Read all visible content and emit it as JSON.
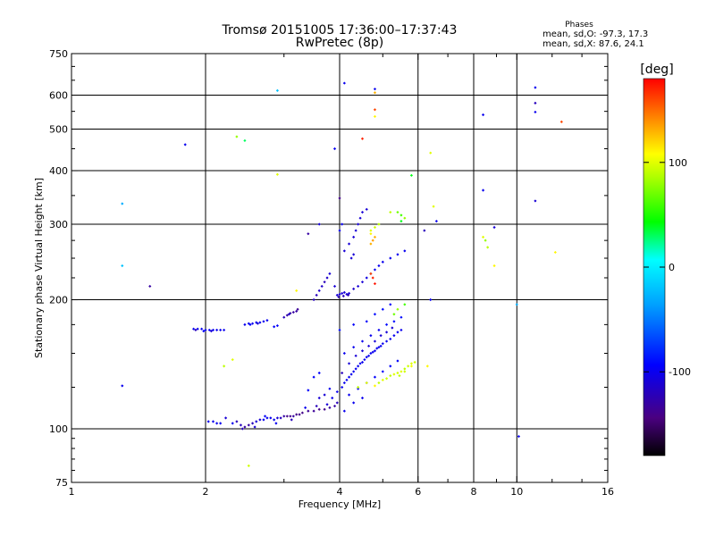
{
  "title": {
    "line1": "Tromsø 20151005 17:36:00–17:37:43",
    "line2": "RwPretec (8p)"
  },
  "stats": {
    "heading": "Phases",
    "line1": "mean, sd,O: -97.3, 17.3",
    "line2": "mean, sd,X:  87.6, 24.1"
  },
  "chart_data": {
    "type": "scatter",
    "xlabel": "Frequency [MHz]",
    "ylabel": "Stationary phase Virtual Height [km]",
    "x_scale": "log",
    "y_scale": "log",
    "xlim": [
      1,
      16
    ],
    "ylim": [
      75,
      750
    ],
    "x_ticks": [
      {
        "value": 1,
        "label": "1"
      },
      {
        "value": 2,
        "label": "2"
      },
      {
        "value": 4,
        "label": "4"
      },
      {
        "value": 6,
        "label": "6"
      },
      {
        "value": 8,
        "label": "8"
      },
      {
        "value": 10,
        "label": "10"
      },
      {
        "value": 16,
        "label": "16"
      }
    ],
    "y_ticks": [
      {
        "value": 75,
        "label": "75"
      },
      {
        "value": 100,
        "label": "100"
      },
      {
        "value": 200,
        "label": "200"
      },
      {
        "value": 300,
        "label": "300"
      },
      {
        "value": 400,
        "label": "400"
      },
      {
        "value": 500,
        "label": "500"
      },
      {
        "value": 600,
        "label": "600"
      },
      {
        "value": 750,
        "label": "750"
      }
    ],
    "x_grid": [
      2,
      4,
      6,
      8,
      10
    ],
    "y_grid": [
      100,
      200,
      300,
      400,
      500,
      600
    ],
    "colorbar": {
      "label": "[deg]",
      "range": [
        -180,
        180
      ],
      "ticks": [
        {
          "value": 100,
          "label": "100"
        },
        {
          "value": 0,
          "label": "0"
        },
        {
          "value": -100,
          "label": "-100"
        }
      ],
      "colormap": "rainbow (black → purple → blue → cyan → green → yellow → red)"
    },
    "point_columns": [
      "x_MHz",
      "y_km",
      "phase_deg"
    ],
    "points": [
      [
        1.88,
        171,
        -100
      ],
      [
        1.92,
        171,
        -100
      ],
      [
        1.96,
        171,
        -100
      ],
      [
        2.0,
        170,
        -100
      ],
      [
        2.04,
        170,
        -100
      ],
      [
        2.08,
        170,
        -100
      ],
      [
        2.12,
        170,
        -100
      ],
      [
        2.16,
        170,
        -100
      ],
      [
        2.2,
        170,
        -100
      ],
      [
        1.9,
        170,
        -120
      ],
      [
        1.98,
        169,
        -95
      ],
      [
        2.06,
        169,
        -110
      ],
      [
        2.45,
        175,
        -100
      ],
      [
        2.5,
        176,
        -100
      ],
      [
        2.55,
        176,
        -100
      ],
      [
        2.6,
        177,
        -100
      ],
      [
        2.65,
        177,
        -100
      ],
      [
        2.7,
        178,
        -100
      ],
      [
        2.75,
        179,
        -100
      ],
      [
        2.52,
        175,
        -95
      ],
      [
        2.62,
        176,
        -110
      ],
      [
        2.85,
        173,
        -95
      ],
      [
        2.9,
        174,
        -95
      ],
      [
        3.05,
        184,
        -130
      ],
      [
        3.1,
        186,
        -130
      ],
      [
        3.15,
        187,
        -130
      ],
      [
        3.2,
        188,
        -130
      ],
      [
        3.0,
        182,
        -120
      ],
      [
        3.08,
        185,
        -115
      ],
      [
        3.22,
        190,
        -135
      ],
      [
        2.03,
        104,
        -100
      ],
      [
        2.08,
        104,
        -100
      ],
      [
        2.12,
        103,
        -100
      ],
      [
        2.16,
        103,
        -100
      ],
      [
        2.22,
        106,
        -110
      ],
      [
        2.3,
        103,
        -100
      ],
      [
        2.35,
        104,
        -120
      ],
      [
        2.4,
        102,
        -120
      ],
      [
        2.45,
        101,
        -130
      ],
      [
        2.5,
        102,
        -130
      ],
      [
        2.55,
        103,
        -120
      ],
      [
        2.6,
        104,
        -110
      ],
      [
        2.65,
        105,
        -110
      ],
      [
        2.7,
        105,
        -100
      ],
      [
        2.75,
        106,
        -100
      ],
      [
        2.8,
        106,
        -100
      ],
      [
        2.85,
        105,
        -100
      ],
      [
        2.9,
        106,
        -110
      ],
      [
        2.95,
        106,
        -120
      ],
      [
        3.0,
        107,
        -130
      ],
      [
        3.05,
        107,
        -140
      ],
      [
        3.1,
        107,
        -140
      ],
      [
        3.15,
        107,
        -130
      ],
      [
        3.2,
        108,
        -140
      ],
      [
        3.25,
        108,
        -140
      ],
      [
        3.3,
        109,
        -140
      ],
      [
        3.4,
        110,
        -135
      ],
      [
        3.5,
        110,
        -135
      ],
      [
        3.6,
        111,
        -140
      ],
      [
        3.7,
        111,
        -140
      ],
      [
        3.8,
        112,
        -130
      ],
      [
        3.9,
        113,
        -130
      ],
      [
        3.95,
        115,
        -120
      ],
      [
        2.42,
        100,
        -120
      ],
      [
        2.58,
        101,
        -110
      ],
      [
        2.72,
        107,
        -95
      ],
      [
        2.88,
        103,
        -100
      ],
      [
        3.12,
        105,
        -120
      ],
      [
        3.35,
        112,
        -100
      ],
      [
        3.55,
        113,
        -120
      ],
      [
        3.75,
        114,
        -110
      ],
      [
        3.85,
        118,
        -100
      ],
      [
        3.95,
        122,
        -100
      ],
      [
        4.05,
        125,
        -100
      ],
      [
        4.1,
        128,
        -100
      ],
      [
        4.15,
        130,
        -100
      ],
      [
        4.2,
        132,
        -100
      ],
      [
        4.25,
        134,
        -100
      ],
      [
        4.3,
        136,
        -100
      ],
      [
        4.35,
        138,
        -100
      ],
      [
        4.4,
        140,
        -100
      ],
      [
        4.45,
        142,
        -100
      ],
      [
        4.5,
        143,
        -100
      ],
      [
        4.55,
        145,
        -100
      ],
      [
        4.6,
        147,
        -100
      ],
      [
        4.65,
        148,
        -100
      ],
      [
        4.7,
        150,
        -100
      ],
      [
        4.75,
        151,
        -100
      ],
      [
        4.8,
        152,
        -100
      ],
      [
        4.85,
        154,
        -100
      ],
      [
        4.9,
        155,
        -100
      ],
      [
        4.95,
        156,
        -100
      ],
      [
        5.0,
        158,
        -100
      ],
      [
        5.1,
        160,
        -100
      ],
      [
        5.2,
        162,
        -100
      ],
      [
        5.3,
        165,
        -100
      ],
      [
        5.4,
        168,
        -100
      ],
      [
        5.5,
        170,
        -100
      ],
      [
        4.05,
        135,
        -120
      ],
      [
        4.2,
        142,
        -110
      ],
      [
        4.35,
        148,
        -110
      ],
      [
        4.5,
        152,
        -110
      ],
      [
        4.65,
        156,
        -110
      ],
      [
        4.8,
        160,
        -110
      ],
      [
        4.95,
        165,
        -110
      ],
      [
        5.1,
        168,
        -110
      ],
      [
        5.25,
        172,
        -110
      ],
      [
        4.1,
        150,
        -100
      ],
      [
        4.3,
        155,
        -100
      ],
      [
        4.5,
        160,
        -100
      ],
      [
        4.7,
        165,
        -100
      ],
      [
        4.9,
        170,
        -100
      ],
      [
        5.1,
        175,
        -90
      ],
      [
        5.3,
        178,
        -90
      ],
      [
        5.5,
        182,
        -90
      ],
      [
        4.2,
        120,
        -100
      ],
      [
        4.4,
        124,
        -100
      ],
      [
        4.6,
        128,
        -100
      ],
      [
        4.8,
        132,
        -95
      ],
      [
        5.0,
        136,
        -95
      ],
      [
        5.2,
        140,
        -95
      ],
      [
        5.4,
        144,
        -95
      ],
      [
        4.0,
        170,
        -90
      ],
      [
        4.3,
        175,
        -95
      ],
      [
        4.6,
        178,
        -95
      ],
      [
        4.8,
        185,
        -90
      ],
      [
        5.0,
        190,
        -90
      ],
      [
        5.2,
        195,
        -95
      ],
      [
        4.1,
        110,
        -100
      ],
      [
        4.3,
        115,
        -100
      ],
      [
        4.5,
        118,
        -100
      ],
      [
        3.6,
        118,
        -110
      ],
      [
        3.7,
        120,
        -110
      ],
      [
        3.8,
        124,
        -100
      ],
      [
        3.5,
        132,
        -95
      ],
      [
        3.6,
        135,
        -95
      ],
      [
        3.4,
        123,
        -95
      ],
      [
        4.9,
        128,
        90
      ],
      [
        5.0,
        130,
        100
      ],
      [
        5.1,
        131,
        95
      ],
      [
        5.2,
        133,
        90
      ],
      [
        5.3,
        134,
        100
      ],
      [
        5.4,
        135,
        95
      ],
      [
        5.5,
        136,
        100
      ],
      [
        5.6,
        138,
        90
      ],
      [
        5.7,
        140,
        95
      ],
      [
        5.8,
        142,
        100
      ],
      [
        5.9,
        143,
        95
      ],
      [
        5.8,
        140,
        105
      ],
      [
        5.6,
        136,
        95
      ],
      [
        5.45,
        133,
        90
      ],
      [
        3.95,
        205,
        -110
      ],
      [
        4.0,
        206,
        -110
      ],
      [
        4.05,
        207,
        -110
      ],
      [
        4.1,
        208,
        -110
      ],
      [
        4.15,
        206,
        -110
      ],
      [
        4.2,
        207,
        -110
      ],
      [
        3.98,
        203,
        -120
      ],
      [
        4.08,
        204,
        -120
      ],
      [
        4.18,
        205,
        -120
      ],
      [
        3.5,
        200,
        -120
      ],
      [
        3.55,
        205,
        -120
      ],
      [
        3.6,
        210,
        -115
      ],
      [
        3.65,
        215,
        -115
      ],
      [
        3.7,
        220,
        -120
      ],
      [
        3.75,
        225,
        -115
      ],
      [
        3.8,
        230,
        -110
      ],
      [
        3.9,
        215,
        -110
      ],
      [
        4.3,
        212,
        -115
      ],
      [
        4.4,
        215,
        -110
      ],
      [
        4.5,
        220,
        -110
      ],
      [
        4.6,
        225,
        -105
      ],
      [
        4.7,
        230,
        -100
      ],
      [
        4.8,
        235,
        -100
      ],
      [
        4.9,
        240,
        -100
      ],
      [
        5.0,
        245,
        -100
      ],
      [
        5.2,
        250,
        -100
      ],
      [
        5.4,
        255,
        -100
      ],
      [
        5.6,
        260,
        -100
      ],
      [
        4.1,
        260,
        -110
      ],
      [
        4.2,
        270,
        -110
      ],
      [
        4.3,
        280,
        -110
      ],
      [
        4.35,
        290,
        -110
      ],
      [
        4.4,
        300,
        -110
      ],
      [
        4.45,
        310,
        -110
      ],
      [
        4.5,
        320,
        -110
      ],
      [
        4.6,
        325,
        -110
      ],
      [
        4.0,
        290,
        -100
      ],
      [
        4.05,
        300,
        -100
      ],
      [
        4.25,
        250,
        -110
      ],
      [
        4.3,
        255,
        -110
      ],
      [
        4.7,
        230,
        160
      ],
      [
        4.75,
        225,
        170
      ],
      [
        4.8,
        218,
        175
      ],
      [
        4.7,
        270,
        130
      ],
      [
        4.75,
        275,
        135
      ],
      [
        4.8,
        280,
        130
      ],
      [
        4.7,
        290,
        100
      ],
      [
        4.8,
        295,
        95
      ],
      [
        4.9,
        300,
        90
      ],
      [
        4.7,
        285,
        110
      ],
      [
        5.4,
        320,
        70
      ],
      [
        5.5,
        315,
        60
      ],
      [
        5.6,
        310,
        80
      ],
      [
        5.2,
        320,
        90
      ],
      [
        5.3,
        185,
        70
      ],
      [
        5.4,
        190,
        80
      ],
      [
        5.6,
        195,
        60
      ],
      [
        4.6,
        128,
        100
      ],
      [
        4.8,
        126,
        110
      ],
      [
        4.4,
        125,
        90
      ],
      [
        1.3,
        335,
        -30
      ],
      [
        1.3,
        240,
        -20
      ],
      [
        1.3,
        126,
        -100
      ],
      [
        1.5,
        215,
        -130
      ],
      [
        1.8,
        460,
        -100
      ],
      [
        2.2,
        140,
        90
      ],
      [
        2.3,
        145,
        100
      ],
      [
        2.35,
        480,
        80
      ],
      [
        2.45,
        470,
        30
      ],
      [
        2.5,
        82,
        95
      ],
      [
        2.9,
        392,
        100
      ],
      [
        2.9,
        615,
        -20
      ],
      [
        3.2,
        210,
        110
      ],
      [
        3.4,
        285,
        -130
      ],
      [
        3.6,
        300,
        -110
      ],
      [
        3.9,
        450,
        -100
      ],
      [
        4.0,
        345,
        -140
      ],
      [
        4.1,
        640,
        -100
      ],
      [
        4.5,
        475,
        170
      ],
      [
        4.8,
        620,
        -100
      ],
      [
        4.8,
        608,
        130
      ],
      [
        4.8,
        555,
        160
      ],
      [
        4.8,
        535,
        110
      ],
      [
        5.5,
        305,
        40
      ],
      [
        5.8,
        390,
        40
      ],
      [
        6.2,
        290,
        -120
      ],
      [
        6.4,
        440,
        100
      ],
      [
        6.5,
        330,
        100
      ],
      [
        6.6,
        305,
        -100
      ],
      [
        6.4,
        200,
        -100
      ],
      [
        6.3,
        140,
        110
      ],
      [
        8.4,
        540,
        -100
      ],
      [
        8.4,
        360,
        -100
      ],
      [
        8.4,
        280,
        100
      ],
      [
        8.5,
        275,
        80
      ],
      [
        8.6,
        265,
        90
      ],
      [
        8.9,
        295,
        -110
      ],
      [
        8.9,
        240,
        110
      ],
      [
        10.0,
        195,
        -30
      ],
      [
        10.1,
        96,
        -100
      ],
      [
        11.0,
        625,
        -100
      ],
      [
        11.0,
        575,
        -120
      ],
      [
        11.0,
        548,
        -100
      ],
      [
        11.0,
        340,
        -110
      ],
      [
        12.6,
        520,
        160
      ],
      [
        12.2,
        258,
        110
      ]
    ]
  }
}
